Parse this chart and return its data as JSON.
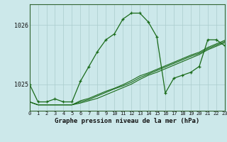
{
  "xlabel_label": "Graphe pression niveau de la mer (hPa)",
  "bg_color": "#cce8ea",
  "grid_color": "#aacccc",
  "line_color": "#1a6b1a",
  "xmin": 0,
  "xmax": 23,
  "ymin": 1024.55,
  "ymax": 1026.35,
  "yticks": [
    1025,
    1026
  ],
  "xticks": [
    0,
    1,
    2,
    3,
    4,
    5,
    6,
    7,
    8,
    9,
    10,
    11,
    12,
    13,
    14,
    15,
    16,
    17,
    18,
    19,
    20,
    21,
    22,
    23
  ],
  "series_main": [
    1025.0,
    1024.7,
    1024.7,
    1024.75,
    1024.7,
    1024.7,
    1025.05,
    1025.3,
    1025.55,
    1025.75,
    1025.85,
    1026.1,
    1026.2,
    1026.2,
    1026.05,
    1025.8,
    1024.85,
    1025.1,
    1025.15,
    1025.2,
    1025.3,
    1025.75,
    1025.75,
    1025.65
  ],
  "series_flat": [
    [
      1024.7,
      1024.65,
      1024.65,
      1024.65,
      1024.65,
      1024.65,
      1024.68,
      1024.72,
      1024.76,
      1024.82,
      1024.88,
      1024.94,
      1025.0,
      1025.08,
      1025.15,
      1025.2,
      1025.26,
      1025.32,
      1025.38,
      1025.44,
      1025.5,
      1025.58,
      1025.64,
      1025.7
    ],
    [
      1024.7,
      1024.65,
      1024.65,
      1024.65,
      1024.65,
      1024.65,
      1024.7,
      1024.74,
      1024.8,
      1024.86,
      1024.92,
      1024.97,
      1025.03,
      1025.11,
      1025.17,
      1025.23,
      1025.29,
      1025.35,
      1025.41,
      1025.47,
      1025.52,
      1025.6,
      1025.66,
      1025.72
    ],
    [
      1024.7,
      1024.65,
      1024.65,
      1024.65,
      1024.65,
      1024.65,
      1024.72,
      1024.76,
      1024.82,
      1024.88,
      1024.93,
      1024.99,
      1025.06,
      1025.14,
      1025.19,
      1025.25,
      1025.31,
      1025.37,
      1025.43,
      1025.49,
      1025.54,
      1025.62,
      1025.68,
      1025.74
    ]
  ]
}
